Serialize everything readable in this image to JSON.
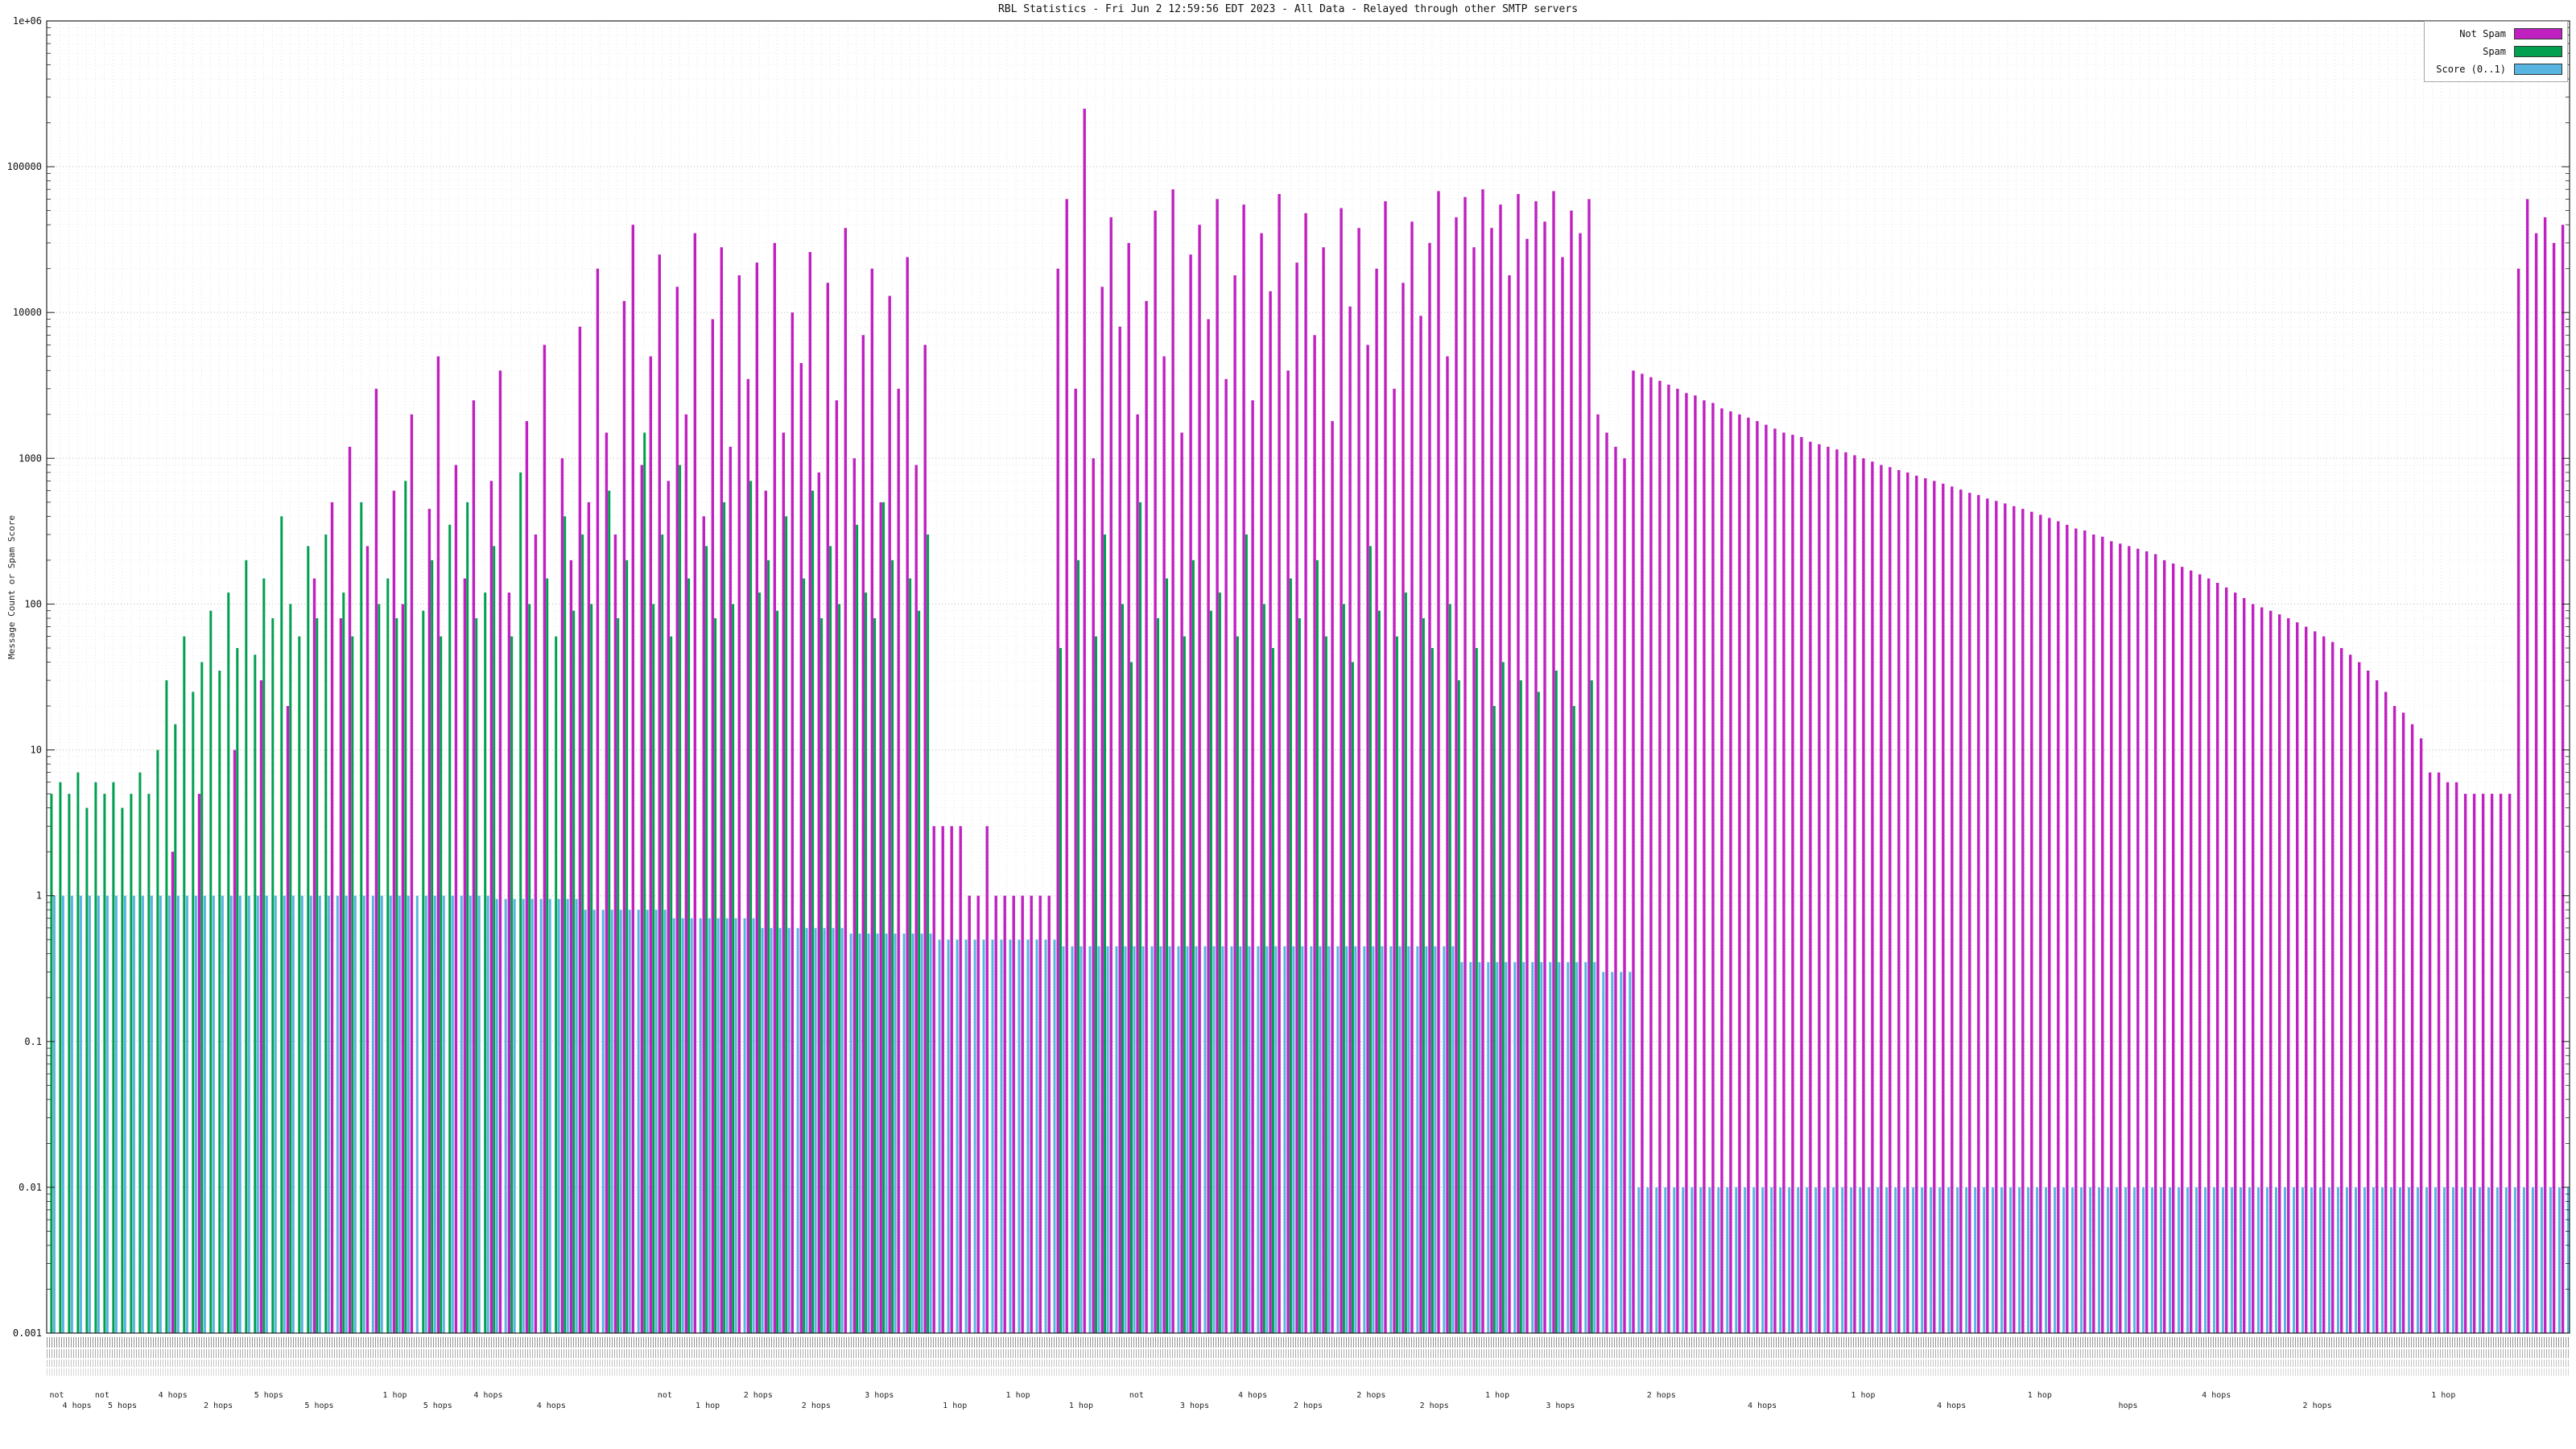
{
  "chart_data": {
    "type": "bar",
    "title": "RBL Statistics - Fri Jun  2 12:59:56 EDT 2023 - All Data - Relayed through other SMTP servers",
    "ylabel": "Message Count or Spam Score",
    "xlabel": "",
    "yscale": "log",
    "ylim": [
      0.001,
      1000000
    ],
    "yticks": [
      "1e+06",
      "100000",
      "10000",
      "1000",
      "100",
      "10",
      "1",
      "0.1",
      "0.01",
      "0.001"
    ],
    "grid": true,
    "legend_position": "top-right",
    "legend": [
      {
        "label": "Not Spam",
        "color": "#c020c0"
      },
      {
        "label": "Spam",
        "color": "#00a050"
      },
      {
        "label": "Score (0..1)",
        "color": "#58b4e0"
      }
    ],
    "series_names": [
      "Not Spam",
      "Spam",
      "Score (0..1)"
    ],
    "bars_format": [
      "not_spam_count",
      "spam_count",
      "score"
    ],
    "x_axis_note": "per-sender host/RBL labels rendered too small to read in source image",
    "bars": [
      [
        0,
        5,
        1
      ],
      [
        0,
        6,
        1
      ],
      [
        0,
        5,
        1
      ],
      [
        0,
        7,
        1
      ],
      [
        0,
        4,
        1
      ],
      [
        0,
        6,
        1
      ],
      [
        0,
        5,
        1
      ],
      [
        0,
        6,
        1
      ],
      [
        0,
        4,
        1
      ],
      [
        0,
        5,
        1
      ],
      [
        0,
        7,
        1
      ],
      [
        0,
        5,
        1
      ],
      [
        0,
        10,
        1
      ],
      [
        0,
        30,
        1
      ],
      [
        2,
        15,
        1
      ],
      [
        0,
        60,
        1
      ],
      [
        0,
        25,
        1
      ],
      [
        5,
        40,
        1
      ],
      [
        0,
        90,
        1
      ],
      [
        0,
        35,
        1
      ],
      [
        0,
        120,
        1
      ],
      [
        10,
        50,
        1
      ],
      [
        0,
        200,
        1
      ],
      [
        0,
        45,
        1
      ],
      [
        30,
        150,
        1
      ],
      [
        0,
        80,
        1
      ],
      [
        0,
        400,
        1
      ],
      [
        20,
        100,
        1
      ],
      [
        0,
        60,
        1
      ],
      [
        0,
        250,
        1
      ],
      [
        150,
        80,
        1
      ],
      [
        0,
        300,
        1
      ],
      [
        500,
        0,
        1
      ],
      [
        80,
        120,
        1
      ],
      [
        1200,
        60,
        1
      ],
      [
        0,
        500,
        1
      ],
      [
        250,
        0,
        1
      ],
      [
        3000,
        100,
        1
      ],
      [
        0,
        150,
        1
      ],
      [
        600,
        80,
        1
      ],
      [
        100,
        700,
        1
      ],
      [
        2000,
        0,
        1
      ],
      [
        0,
        90,
        1
      ],
      [
        450,
        200,
        1
      ],
      [
        5000,
        60,
        1
      ],
      [
        0,
        350,
        1
      ],
      [
        900,
        0,
        1
      ],
      [
        150,
        500,
        1
      ],
      [
        2500,
        80,
        1
      ],
      [
        0,
        120,
        1
      ],
      [
        700,
        250,
        0.95
      ],
      [
        4000,
        0,
        0.95
      ],
      [
        120,
        60,
        0.95
      ],
      [
        0,
        800,
        0.95
      ],
      [
        1800,
        100,
        0.95
      ],
      [
        300,
        0,
        0.95
      ],
      [
        6000,
        150,
        0.95
      ],
      [
        0,
        60,
        0.95
      ],
      [
        1000,
        400,
        0.95
      ],
      [
        200,
        90,
        0.95
      ],
      [
        8000,
        300,
        0.8
      ],
      [
        500,
        100,
        0.8
      ],
      [
        20000,
        0,
        0.8
      ],
      [
        1500,
        600,
        0.8
      ],
      [
        300,
        80,
        0.8
      ],
      [
        12000,
        200,
        0.8
      ],
      [
        40000,
        0,
        0.8
      ],
      [
        900,
        1500,
        0.8
      ],
      [
        5000,
        100,
        0.8
      ],
      [
        25000,
        300,
        0.8
      ],
      [
        700,
        60,
        0.7
      ],
      [
        15000,
        900,
        0.7
      ],
      [
        2000,
        150,
        0.7
      ],
      [
        35000,
        0,
        0.7
      ],
      [
        400,
        250,
        0.7
      ],
      [
        9000,
        80,
        0.7
      ],
      [
        28000,
        500,
        0.7
      ],
      [
        1200,
        100,
        0.7
      ],
      [
        18000,
        0,
        0.7
      ],
      [
        3500,
        700,
        0.7
      ],
      [
        22000,
        120,
        0.6
      ],
      [
        600,
        200,
        0.6
      ],
      [
        30000,
        90,
        0.6
      ],
      [
        1500,
        400,
        0.6
      ],
      [
        10000,
        0,
        0.6
      ],
      [
        4500,
        150,
        0.6
      ],
      [
        26000,
        600,
        0.6
      ],
      [
        800,
        80,
        0.6
      ],
      [
        16000,
        250,
        0.6
      ],
      [
        2500,
        100,
        0.6
      ],
      [
        38000,
        0,
        0.55
      ],
      [
        1000,
        350,
        0.55
      ],
      [
        7000,
        120,
        0.55
      ],
      [
        20000,
        80,
        0.55
      ],
      [
        500,
        500,
        0.55
      ],
      [
        13000,
        200,
        0.55
      ],
      [
        3000,
        0,
        0.55
      ],
      [
        24000,
        150,
        0.55
      ],
      [
        900,
        90,
        0.55
      ],
      [
        6000,
        300,
        0.55
      ],
      [
        3,
        0,
        0.5
      ],
      [
        3,
        0,
        0.5
      ],
      [
        3,
        0,
        0.5
      ],
      [
        3,
        0,
        0.5
      ],
      [
        1,
        0,
        0.5
      ],
      [
        1,
        0,
        0.5
      ],
      [
        3,
        0,
        0.5
      ],
      [
        1,
        0,
        0.5
      ],
      [
        1,
        0,
        0.5
      ],
      [
        1,
        0,
        0.5
      ],
      [
        1,
        0,
        0.5
      ],
      [
        1,
        0,
        0.5
      ],
      [
        1,
        0,
        0.5
      ],
      [
        1,
        0,
        0.5
      ],
      [
        20000,
        50,
        0.45
      ],
      [
        60000,
        0,
        0.45
      ],
      [
        3000,
        200,
        0.45
      ],
      [
        250000,
        0,
        0.45
      ],
      [
        1000,
        60,
        0.45
      ],
      [
        15000,
        300,
        0.45
      ],
      [
        45000,
        0,
        0.45
      ],
      [
        8000,
        100,
        0.45
      ],
      [
        30000,
        40,
        0.45
      ],
      [
        2000,
        500,
        0.45
      ],
      [
        12000,
        0,
        0.45
      ],
      [
        50000,
        80,
        0.45
      ],
      [
        5000,
        150,
        0.45
      ],
      [
        70000,
        0,
        0.45
      ],
      [
        1500,
        60,
        0.45
      ],
      [
        25000,
        200,
        0.45
      ],
      [
        40000,
        0,
        0.45
      ],
      [
        9000,
        90,
        0.45
      ],
      [
        60000,
        120,
        0.45
      ],
      [
        3500,
        0,
        0.45
      ],
      [
        18000,
        60,
        0.45
      ],
      [
        55000,
        300,
        0.45
      ],
      [
        2500,
        0,
        0.45
      ],
      [
        35000,
        100,
        0.45
      ],
      [
        14000,
        50,
        0.45
      ],
      [
        65000,
        0,
        0.45
      ],
      [
        4000,
        150,
        0.45
      ],
      [
        22000,
        80,
        0.45
      ],
      [
        48000,
        0,
        0.45
      ],
      [
        7000,
        200,
        0.45
      ],
      [
        28000,
        60,
        0.45
      ],
      [
        1800,
        0,
        0.45
      ],
      [
        52000,
        100,
        0.45
      ],
      [
        11000,
        40,
        0.45
      ],
      [
        38000,
        0,
        0.45
      ],
      [
        6000,
        250,
        0.45
      ],
      [
        20000,
        90,
        0.45
      ],
      [
        58000,
        0,
        0.45
      ],
      [
        3000,
        60,
        0.45
      ],
      [
        16000,
        120,
        0.45
      ],
      [
        42000,
        0,
        0.45
      ],
      [
        9500,
        80,
        0.45
      ],
      [
        30000,
        50,
        0.45
      ],
      [
        68000,
        0,
        0.45
      ],
      [
        5000,
        100,
        0.45
      ],
      [
        45000,
        30,
        0.35
      ],
      [
        62000,
        0,
        0.35
      ],
      [
        28000,
        50,
        0.35
      ],
      [
        70000,
        0,
        0.35
      ],
      [
        38000,
        20,
        0.35
      ],
      [
        55000,
        40,
        0.35
      ],
      [
        18000,
        0,
        0.35
      ],
      [
        65000,
        30,
        0.35
      ],
      [
        32000,
        0,
        0.35
      ],
      [
        58000,
        25,
        0.35
      ],
      [
        42000,
        0,
        0.35
      ],
      [
        68000,
        35,
        0.35
      ],
      [
        24000,
        0,
        0.35
      ],
      [
        50000,
        20,
        0.35
      ],
      [
        35000,
        0,
        0.35
      ],
      [
        60000,
        30,
        0.35
      ],
      [
        2000,
        0,
        0.3
      ],
      [
        1500,
        0,
        0.3
      ],
      [
        1200,
        0,
        0.3
      ],
      [
        1000,
        0,
        0.3
      ],
      [
        4000,
        0,
        0.01
      ],
      [
        3800,
        0,
        0.01
      ],
      [
        3600,
        0,
        0.01
      ],
      [
        3400,
        0,
        0.01
      ],
      [
        3200,
        0,
        0.01
      ],
      [
        3000,
        0,
        0.01
      ],
      [
        2800,
        0,
        0.01
      ],
      [
        2700,
        0,
        0.01
      ],
      [
        2500,
        0,
        0.01
      ],
      [
        2400,
        0,
        0.01
      ],
      [
        2200,
        0,
        0.01
      ],
      [
        2100,
        0,
        0.01
      ],
      [
        2000,
        0,
        0.01
      ],
      [
        1900,
        0,
        0.01
      ],
      [
        1800,
        0,
        0.01
      ],
      [
        1700,
        0,
        0.01
      ],
      [
        1600,
        0,
        0.01
      ],
      [
        1500,
        0,
        0.01
      ],
      [
        1450,
        0,
        0.01
      ],
      [
        1400,
        0,
        0.01
      ],
      [
        1300,
        0,
        0.01
      ],
      [
        1250,
        0,
        0.01
      ],
      [
        1200,
        0,
        0.01
      ],
      [
        1150,
        0,
        0.01
      ],
      [
        1100,
        0,
        0.01
      ],
      [
        1050,
        0,
        0.01
      ],
      [
        1000,
        0,
        0.01
      ],
      [
        950,
        0,
        0.01
      ],
      [
        900,
        0,
        0.01
      ],
      [
        870,
        0,
        0.01
      ],
      [
        830,
        0,
        0.01
      ],
      [
        800,
        0,
        0.01
      ],
      [
        760,
        0,
        0.01
      ],
      [
        730,
        0,
        0.01
      ],
      [
        700,
        0,
        0.01
      ],
      [
        670,
        0,
        0.01
      ],
      [
        640,
        0,
        0.01
      ],
      [
        610,
        0,
        0.01
      ],
      [
        580,
        0,
        0.01
      ],
      [
        560,
        0,
        0.01
      ],
      [
        530,
        0,
        0.01
      ],
      [
        510,
        0,
        0.01
      ],
      [
        490,
        0,
        0.01
      ],
      [
        470,
        0,
        0.01
      ],
      [
        450,
        0,
        0.01
      ],
      [
        430,
        0,
        0.01
      ],
      [
        410,
        0,
        0.01
      ],
      [
        390,
        0,
        0.01
      ],
      [
        370,
        0,
        0.01
      ],
      [
        350,
        0,
        0.01
      ],
      [
        330,
        0,
        0.01
      ],
      [
        320,
        0,
        0.01
      ],
      [
        300,
        0,
        0.01
      ],
      [
        290,
        0,
        0.01
      ],
      [
        270,
        0,
        0.01
      ],
      [
        260,
        0,
        0.01
      ],
      [
        250,
        0,
        0.01
      ],
      [
        240,
        0,
        0.01
      ],
      [
        230,
        0,
        0.01
      ],
      [
        220,
        0,
        0.01
      ],
      [
        200,
        0,
        0.01
      ],
      [
        190,
        0,
        0.01
      ],
      [
        180,
        0,
        0.01
      ],
      [
        170,
        0,
        0.01
      ],
      [
        160,
        0,
        0.01
      ],
      [
        150,
        0,
        0.01
      ],
      [
        140,
        0,
        0.01
      ],
      [
        130,
        0,
        0.01
      ],
      [
        120,
        0,
        0.01
      ],
      [
        110,
        0,
        0.01
      ],
      [
        100,
        0,
        0.01
      ],
      [
        95,
        0,
        0.01
      ],
      [
        90,
        0,
        0.01
      ],
      [
        85,
        0,
        0.01
      ],
      [
        80,
        0,
        0.01
      ],
      [
        75,
        0,
        0.01
      ],
      [
        70,
        0,
        0.01
      ],
      [
        65,
        0,
        0.01
      ],
      [
        60,
        0,
        0.01
      ],
      [
        55,
        0,
        0.01
      ],
      [
        50,
        0,
        0.01
      ],
      [
        45,
        0,
        0.01
      ],
      [
        40,
        0,
        0.01
      ],
      [
        35,
        0,
        0.01
      ],
      [
        30,
        0,
        0.01
      ],
      [
        25,
        0,
        0.01
      ],
      [
        20,
        0,
        0.01
      ],
      [
        18,
        0,
        0.01
      ],
      [
        15,
        0,
        0.01
      ],
      [
        12,
        0,
        0.01
      ],
      [
        7,
        0,
        0.01
      ],
      [
        7,
        0,
        0.01
      ],
      [
        6,
        0,
        0.01
      ],
      [
        6,
        0,
        0.01
      ],
      [
        5,
        0,
        0.01
      ],
      [
        5,
        0,
        0.01
      ],
      [
        5,
        0,
        0.01
      ],
      [
        5,
        0,
        0.01
      ],
      [
        5,
        0,
        0.01
      ],
      [
        5,
        0,
        0.01
      ],
      [
        20000,
        0,
        0.01
      ],
      [
        60000,
        0,
        0.01
      ],
      [
        35000,
        0,
        0.01
      ],
      [
        45000,
        0,
        0.01
      ],
      [
        30000,
        0,
        0.01
      ],
      [
        40000,
        0,
        0.01
      ]
    ],
    "hops_labels": [
      {
        "x": 0.004,
        "t": "not"
      },
      {
        "x": 0.012,
        "t": "4 hops"
      },
      {
        "x": 0.022,
        "t": "not"
      },
      {
        "x": 0.03,
        "t": "5 hops"
      },
      {
        "x": 0.05,
        "t": "4 hops"
      },
      {
        "x": 0.068,
        "t": "2 hops"
      },
      {
        "x": 0.088,
        "t": "5 hops"
      },
      {
        "x": 0.108,
        "t": "5 hops"
      },
      {
        "x": 0.138,
        "t": "1 hop"
      },
      {
        "x": 0.155,
        "t": "5 hops"
      },
      {
        "x": 0.175,
        "t": "4 hops"
      },
      {
        "x": 0.2,
        "t": "4 hops"
      },
      {
        "x": 0.245,
        "t": "not"
      },
      {
        "x": 0.262,
        "t": "1 hop"
      },
      {
        "x": 0.282,
        "t": "2 hops"
      },
      {
        "x": 0.305,
        "t": "2 hops"
      },
      {
        "x": 0.33,
        "t": "3 hops"
      },
      {
        "x": 0.36,
        "t": "1 hop"
      },
      {
        "x": 0.385,
        "t": "1 hop"
      },
      {
        "x": 0.41,
        "t": "1 hop"
      },
      {
        "x": 0.432,
        "t": "not"
      },
      {
        "x": 0.455,
        "t": "3 hops"
      },
      {
        "x": 0.478,
        "t": "4 hops"
      },
      {
        "x": 0.5,
        "t": "2 hops"
      },
      {
        "x": 0.525,
        "t": "2 hops"
      },
      {
        "x": 0.55,
        "t": "2 hops"
      },
      {
        "x": 0.575,
        "t": "1 hop"
      },
      {
        "x": 0.6,
        "t": "3 hops"
      },
      {
        "x": 0.64,
        "t": "2 hops"
      },
      {
        "x": 0.68,
        "t": "4 hops"
      },
      {
        "x": 0.72,
        "t": "1 hop"
      },
      {
        "x": 0.755,
        "t": "4 hops"
      },
      {
        "x": 0.79,
        "t": "1 hop"
      },
      {
        "x": 0.825,
        "t": "hops"
      },
      {
        "x": 0.86,
        "t": "4 hops"
      },
      {
        "x": 0.9,
        "t": "2 hops"
      },
      {
        "x": 0.95,
        "t": "1 hop"
      }
    ]
  }
}
